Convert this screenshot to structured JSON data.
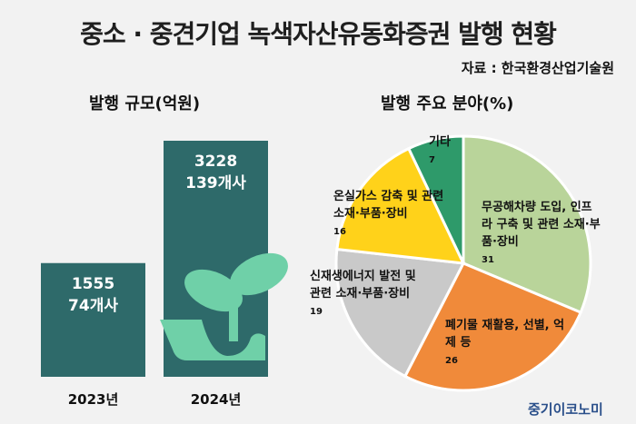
{
  "title": "중소 · 중견기업 녹색자산유동화증권 발행 현황",
  "source": "자료 : 한국환경산업기술원",
  "brand": "중기이코노미",
  "chart_data": [
    {
      "type": "bar",
      "title": "발행 규모(억원)",
      "categories": [
        "2023년",
        "2024년"
      ],
      "values": [
        1555,
        3228
      ],
      "counts": [
        "74개사",
        "139개사"
      ],
      "color": "#2e6a6a"
    },
    {
      "type": "pie",
      "title": "발행 주요 분야(%)",
      "slices": [
        {
          "label": "무공해차량 도입, 인프라 구축 및 관련 소재·부품·장비",
          "lines": [
            "무공해차량 도입, 인프",
            "라 구축 및 관련 소재·부",
            "품·장비"
          ],
          "value": 31,
          "color": "#b9d49a"
        },
        {
          "label": "폐기물 재활용, 선별, 억제 등",
          "lines": [
            "폐기물 재활용, 선별, 억",
            "제 등"
          ],
          "value": 26,
          "color": "#f08a3a"
        },
        {
          "label": "신재생에너지 발전 및 관련 소재·부품·장비",
          "lines": [
            "신재생에너지 발전 및",
            "관련 소재·부품·장비"
          ],
          "value": 19,
          "color": "#c9c9c9"
        },
        {
          "label": "온실가스 감축 및 관련 소재·부품·장비",
          "lines": [
            "온실가스 감축 및 관련",
            "소재·부품·장비"
          ],
          "value": 16,
          "color": "#ffd21a"
        },
        {
          "label": "기타",
          "lines": [
            "기타"
          ],
          "value": 7,
          "color": "#2e9a6a"
        }
      ]
    }
  ]
}
